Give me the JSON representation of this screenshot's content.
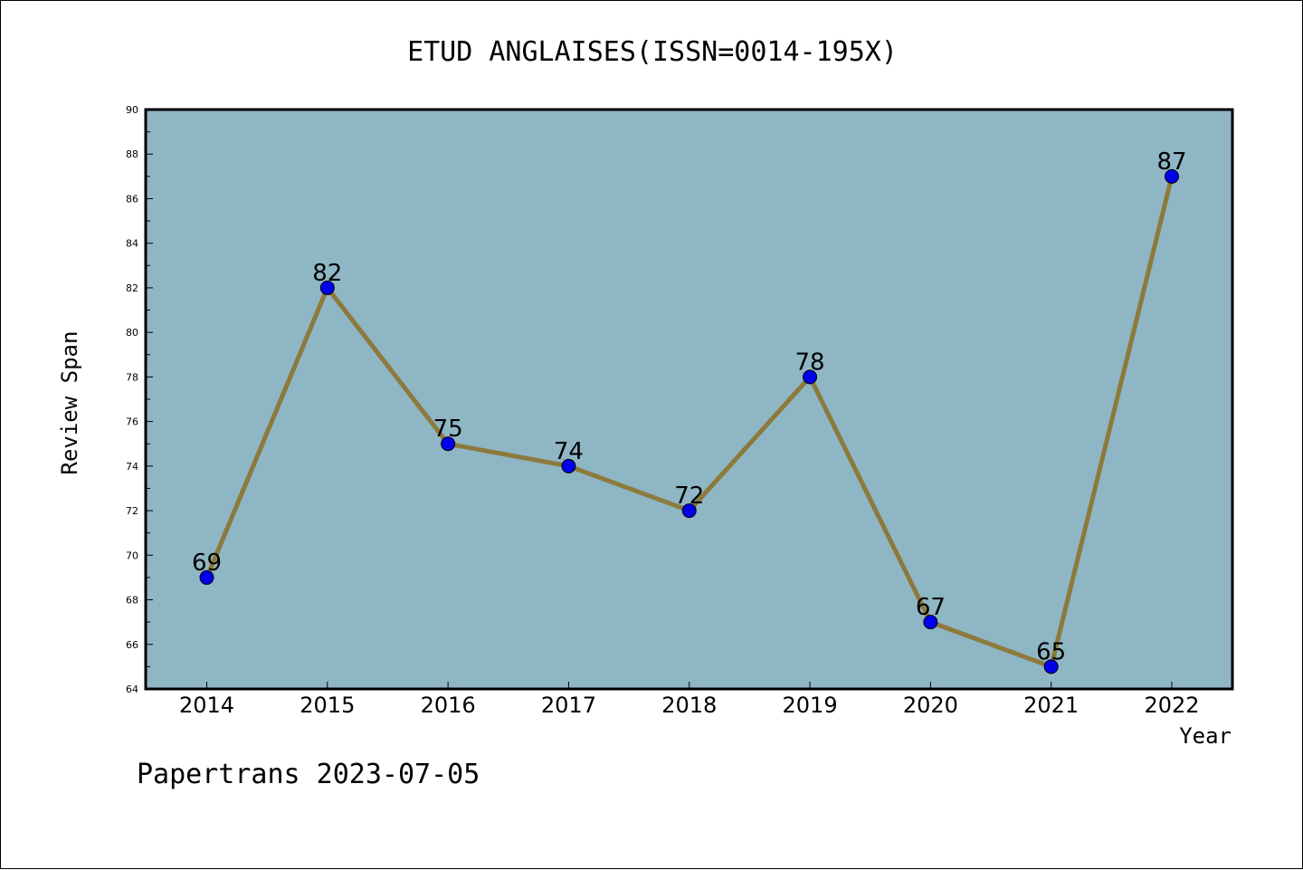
{
  "chart_data": {
    "type": "line",
    "title": "ETUD ANGLAISES(ISSN=0014-195X)",
    "xlabel": "Year",
    "ylabel": "Review Span",
    "categories": [
      "2014",
      "2015",
      "2016",
      "2017",
      "2018",
      "2019",
      "2020",
      "2021",
      "2022"
    ],
    "values": [
      69,
      82,
      75,
      74,
      72,
      78,
      67,
      65,
      87
    ],
    "data_labels": [
      "69",
      "82",
      "75",
      "74",
      "72",
      "78",
      "67",
      "65",
      "87"
    ],
    "ylim": [
      64,
      90
    ],
    "y_ticks": [
      "64",
      "66",
      "68",
      "70",
      "72",
      "74",
      "76",
      "78",
      "80",
      "82",
      "84",
      "86",
      "88",
      "90"
    ],
    "grid": false,
    "legend": "none",
    "colors": {
      "plot_background": "#8fb6c4",
      "line": "#8c7a3c",
      "marker": "#0000ee",
      "axis": "#000000"
    }
  },
  "footer": {
    "credit": "Papertrans 2023-07-05"
  }
}
